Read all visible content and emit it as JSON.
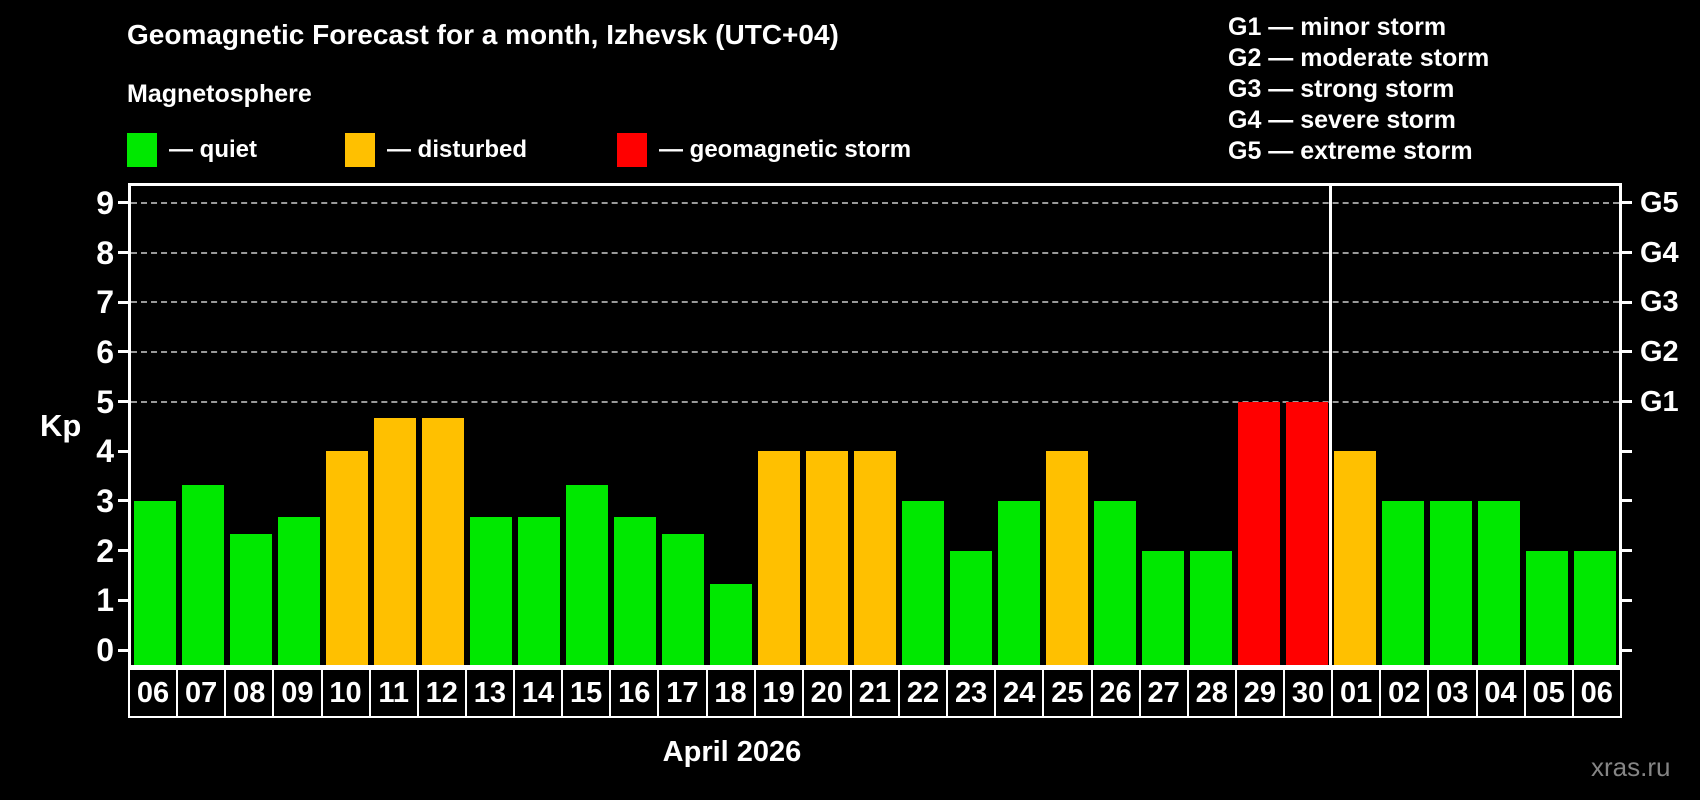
{
  "header": {
    "title": "Geomagnetic Forecast for a month, Izhevsk (UTC+04)",
    "subtitle": "Magnetosphere"
  },
  "legend": {
    "items": [
      {
        "status": "quiet",
        "label": "— quiet",
        "color": "#00e800"
      },
      {
        "status": "disturbed",
        "label": "— disturbed",
        "color": "#ffc000"
      },
      {
        "status": "storm",
        "label": "— geomagnetic storm",
        "color": "#ff0000"
      }
    ]
  },
  "g_scale_legend": {
    "items": [
      "G1 — minor storm",
      "G2 — moderate storm",
      "G3 — strong storm",
      "G4 — severe storm",
      "G5 — extreme storm"
    ]
  },
  "watermark": "xras.ru",
  "chart_data": {
    "type": "bar",
    "title": "Geomagnetic Forecast for a month, Izhevsk (UTC+04)",
    "subtitle": "Magnetosphere",
    "xlabel": "April 2026",
    "ylabel": "Kp",
    "ylim": [
      0,
      9
    ],
    "yticks": [
      0,
      1,
      2,
      3,
      4,
      5,
      6,
      7,
      8,
      9
    ],
    "grid": "horizontal dashed lines at Kp 5-9 only",
    "legend_position": "top-left above plot",
    "right_axis": {
      "labels": [
        "G1",
        "G2",
        "G3",
        "G4",
        "G5"
      ],
      "at_kp": [
        5,
        6,
        7,
        8,
        9
      ]
    },
    "categories": [
      "06",
      "07",
      "08",
      "09",
      "10",
      "11",
      "12",
      "13",
      "14",
      "15",
      "16",
      "17",
      "18",
      "19",
      "20",
      "21",
      "22",
      "23",
      "24",
      "25",
      "26",
      "27",
      "28",
      "29",
      "30",
      "01",
      "02",
      "03",
      "04",
      "05",
      "06"
    ],
    "values": [
      3,
      3.33,
      2.33,
      2.67,
      4,
      4.67,
      4.67,
      2.67,
      2.67,
      3.33,
      2.67,
      2.33,
      1.33,
      4,
      4,
      4,
      3,
      2,
      3,
      4,
      3,
      2,
      2,
      5,
      5,
      4,
      3,
      3,
      3,
      2,
      2
    ],
    "statuses": [
      "quiet",
      "quiet",
      "quiet",
      "quiet",
      "disturbed",
      "disturbed",
      "disturbed",
      "quiet",
      "quiet",
      "quiet",
      "quiet",
      "quiet",
      "quiet",
      "disturbed",
      "disturbed",
      "disturbed",
      "quiet",
      "quiet",
      "quiet",
      "disturbed",
      "quiet",
      "quiet",
      "quiet",
      "storm",
      "storm",
      "disturbed",
      "quiet",
      "quiet",
      "quiet",
      "quiet",
      "quiet"
    ],
    "month_separator_after_index": 24,
    "colors": {
      "quiet": "#00e800",
      "disturbed": "#ffc000",
      "storm": "#ff0000"
    }
  }
}
